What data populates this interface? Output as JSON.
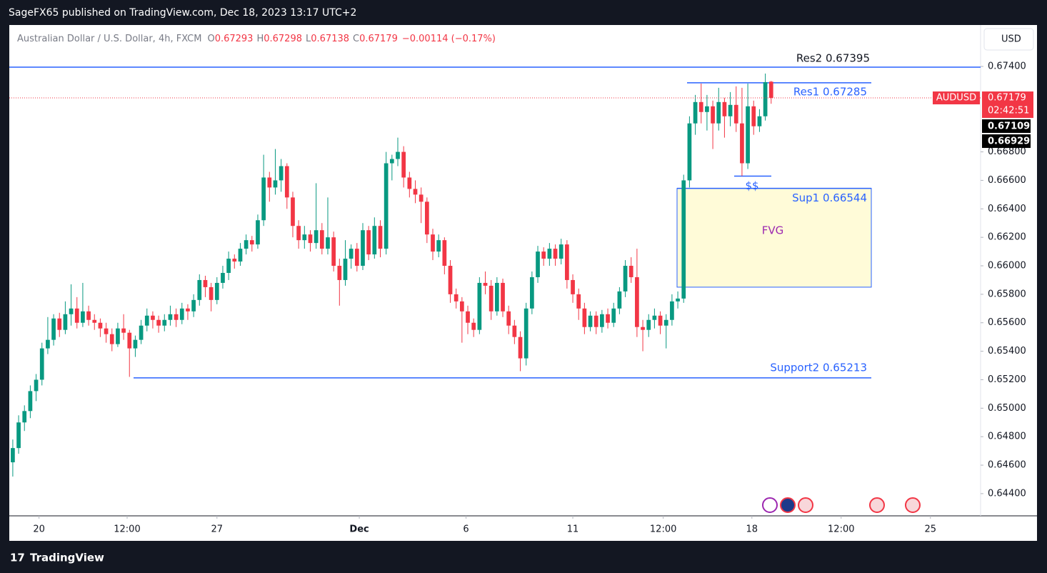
{
  "header": {
    "published": "SageFX65 published on TradingView.com, Dec 18, 2023 13:17 UTC+2",
    "logo": "TradingView"
  },
  "chart_data": {
    "type": "candlestick",
    "symbol": "Australian Dollar / U.S. Dollar, 4h, FXCM",
    "legend_keys": [
      "O",
      "H",
      "L",
      "C"
    ],
    "change": "−0.00114 (−0.17%)",
    "currency": "USD",
    "ticker": "AUDUSD",
    "countdown": "02:42:51",
    "marker_labels": [
      "0.67109",
      "0.66929"
    ],
    "up_color": "#089981",
    "down_color": "#f23645",
    "candles": [
      [
        0.6462,
        0.6478,
        0.6452,
        0.6472
      ],
      [
        0.6472,
        0.6495,
        0.6468,
        0.649
      ],
      [
        0.649,
        0.6502,
        0.6484,
        0.6498
      ],
      [
        0.6498,
        0.6516,
        0.6493,
        0.6512
      ],
      [
        0.6512,
        0.6524,
        0.6505,
        0.652
      ],
      [
        0.652,
        0.6546,
        0.6516,
        0.6542
      ],
      [
        0.6542,
        0.6564,
        0.6538,
        0.6548
      ],
      [
        0.6548,
        0.6566,
        0.6544,
        0.6563
      ],
      [
        0.6563,
        0.6567,
        0.655,
        0.6555
      ],
      [
        0.6555,
        0.6575,
        0.6552,
        0.6566
      ],
      [
        0.6566,
        0.6587,
        0.6558,
        0.657
      ],
      [
        0.657,
        0.6578,
        0.6556,
        0.656
      ],
      [
        0.656,
        0.6588,
        0.6557,
        0.6568
      ],
      [
        0.6568,
        0.6572,
        0.6558,
        0.6562
      ],
      [
        0.6562,
        0.6566,
        0.6555,
        0.656
      ],
      [
        0.656,
        0.6563,
        0.655,
        0.6556
      ],
      [
        0.6556,
        0.656,
        0.6546,
        0.6552
      ],
      [
        0.6552,
        0.6556,
        0.654,
        0.6545
      ],
      [
        0.6545,
        0.656,
        0.6543,
        0.6556
      ],
      [
        0.6556,
        0.6566,
        0.6548,
        0.6553
      ],
      [
        0.6553,
        0.6555,
        0.6522,
        0.6542
      ],
      [
        0.6542,
        0.6551,
        0.6536,
        0.6548
      ],
      [
        0.6548,
        0.6562,
        0.6545,
        0.6558
      ],
      [
        0.6558,
        0.657,
        0.6554,
        0.6565
      ],
      [
        0.6565,
        0.6568,
        0.6556,
        0.6562
      ],
      [
        0.6562,
        0.6565,
        0.6553,
        0.6558
      ],
      [
        0.6558,
        0.6566,
        0.6554,
        0.6562
      ],
      [
        0.6562,
        0.6572,
        0.6558,
        0.6566
      ],
      [
        0.6566,
        0.657,
        0.6557,
        0.6562
      ],
      [
        0.6562,
        0.6574,
        0.6559,
        0.657
      ],
      [
        0.657,
        0.6573,
        0.6562,
        0.6568
      ],
      [
        0.6568,
        0.658,
        0.6564,
        0.6576
      ],
      [
        0.6576,
        0.6594,
        0.6572,
        0.659
      ],
      [
        0.659,
        0.6593,
        0.6578,
        0.6585
      ],
      [
        0.6585,
        0.6588,
        0.6568,
        0.6576
      ],
      [
        0.6576,
        0.6592,
        0.6573,
        0.6588
      ],
      [
        0.6588,
        0.66,
        0.6584,
        0.6595
      ],
      [
        0.6595,
        0.661,
        0.659,
        0.6605
      ],
      [
        0.6605,
        0.6608,
        0.6598,
        0.6603
      ],
      [
        0.6603,
        0.6616,
        0.66,
        0.6612
      ],
      [
        0.6612,
        0.6622,
        0.6608,
        0.6618
      ],
      [
        0.6618,
        0.6621,
        0.661,
        0.6615
      ],
      [
        0.6615,
        0.6636,
        0.6612,
        0.6632
      ],
      [
        0.6632,
        0.6678,
        0.6628,
        0.6662
      ],
      [
        0.6662,
        0.6666,
        0.6645,
        0.6655
      ],
      [
        0.6655,
        0.6682,
        0.665,
        0.666
      ],
      [
        0.666,
        0.6675,
        0.6652,
        0.667
      ],
      [
        0.667,
        0.6672,
        0.664,
        0.6648
      ],
      [
        0.6648,
        0.6652,
        0.662,
        0.6628
      ],
      [
        0.6628,
        0.6632,
        0.6612,
        0.6618
      ],
      [
        0.6618,
        0.6628,
        0.6612,
        0.6622
      ],
      [
        0.6622,
        0.6625,
        0.661,
        0.6616
      ],
      [
        0.6616,
        0.6658,
        0.6612,
        0.6625
      ],
      [
        0.6625,
        0.663,
        0.6608,
        0.6612
      ],
      [
        0.6612,
        0.6648,
        0.6608,
        0.662
      ],
      [
        0.662,
        0.6624,
        0.6596,
        0.66
      ],
      [
        0.66,
        0.6605,
        0.6572,
        0.659
      ],
      [
        0.659,
        0.6618,
        0.6586,
        0.6605
      ],
      [
        0.6605,
        0.6615,
        0.6598,
        0.6612
      ],
      [
        0.6612,
        0.6616,
        0.6596,
        0.66
      ],
      [
        0.66,
        0.663,
        0.6597,
        0.6625
      ],
      [
        0.6625,
        0.6628,
        0.6604,
        0.6608
      ],
      [
        0.6608,
        0.6634,
        0.6605,
        0.6628
      ],
      [
        0.6628,
        0.6632,
        0.6606,
        0.6612
      ],
      [
        0.6612,
        0.668,
        0.6608,
        0.6672
      ],
      [
        0.6672,
        0.6678,
        0.666,
        0.6675
      ],
      [
        0.6675,
        0.669,
        0.667,
        0.668
      ],
      [
        0.668,
        0.6684,
        0.6655,
        0.6662
      ],
      [
        0.6662,
        0.6666,
        0.6648,
        0.6654
      ],
      [
        0.6654,
        0.666,
        0.6644,
        0.665
      ],
      [
        0.665,
        0.6655,
        0.663,
        0.6645
      ],
      [
        0.6645,
        0.6648,
        0.6616,
        0.6622
      ],
      [
        0.6622,
        0.6626,
        0.6604,
        0.661
      ],
      [
        0.661,
        0.6622,
        0.6606,
        0.6618
      ],
      [
        0.6618,
        0.662,
        0.6594,
        0.66
      ],
      [
        0.66,
        0.6604,
        0.6574,
        0.658
      ],
      [
        0.658,
        0.6584,
        0.657,
        0.6575
      ],
      [
        0.6575,
        0.6578,
        0.6546,
        0.6568
      ],
      [
        0.6568,
        0.6572,
        0.6552,
        0.656
      ],
      [
        0.656,
        0.6563,
        0.655,
        0.6555
      ],
      [
        0.6555,
        0.6592,
        0.6552,
        0.6588
      ],
      [
        0.6588,
        0.6596,
        0.658,
        0.6586
      ],
      [
        0.6586,
        0.659,
        0.6562,
        0.6568
      ],
      [
        0.6568,
        0.6592,
        0.6565,
        0.6588
      ],
      [
        0.6588,
        0.6591,
        0.6564,
        0.6568
      ],
      [
        0.6568,
        0.6572,
        0.6552,
        0.6558
      ],
      [
        0.6558,
        0.6562,
        0.6545,
        0.655
      ],
      [
        0.655,
        0.6554,
        0.6526,
        0.6535
      ],
      [
        0.6535,
        0.6574,
        0.653,
        0.657
      ],
      [
        0.657,
        0.6596,
        0.6566,
        0.6592
      ],
      [
        0.6592,
        0.6614,
        0.6588,
        0.661
      ],
      [
        0.661,
        0.6613,
        0.66,
        0.6605
      ],
      [
        0.6605,
        0.6616,
        0.66,
        0.6612
      ],
      [
        0.6612,
        0.6615,
        0.66,
        0.6605
      ],
      [
        0.6605,
        0.6619,
        0.6601,
        0.6615
      ],
      [
        0.6615,
        0.6618,
        0.6584,
        0.659
      ],
      [
        0.659,
        0.6594,
        0.6574,
        0.658
      ],
      [
        0.658,
        0.6584,
        0.6562,
        0.657
      ],
      [
        0.657,
        0.6574,
        0.6552,
        0.6557
      ],
      [
        0.6557,
        0.6568,
        0.6554,
        0.6565
      ],
      [
        0.6565,
        0.6568,
        0.6552,
        0.6557
      ],
      [
        0.6557,
        0.6569,
        0.6553,
        0.6566
      ],
      [
        0.6566,
        0.657,
        0.6556,
        0.656
      ],
      [
        0.656,
        0.6574,
        0.6557,
        0.657
      ],
      [
        0.657,
        0.6585,
        0.6566,
        0.6582
      ],
      [
        0.6582,
        0.6604,
        0.6578,
        0.66
      ],
      [
        0.66,
        0.6606,
        0.6588,
        0.6592
      ],
      [
        0.6592,
        0.6612,
        0.655,
        0.6557
      ],
      [
        0.6557,
        0.6562,
        0.654,
        0.6555
      ],
      [
        0.6555,
        0.6566,
        0.655,
        0.6562
      ],
      [
        0.6562,
        0.657,
        0.6556,
        0.6565
      ],
      [
        0.6565,
        0.6568,
        0.6552,
        0.6558
      ],
      [
        0.6558,
        0.6566,
        0.6542,
        0.6562
      ],
      [
        0.6562,
        0.658,
        0.6558,
        0.6575
      ],
      [
        0.6575,
        0.6582,
        0.657,
        0.6577
      ],
      [
        0.6577,
        0.6664,
        0.6574,
        0.666
      ],
      [
        0.666,
        0.6705,
        0.6655,
        0.67
      ],
      [
        0.67,
        0.672,
        0.6692,
        0.6715
      ],
      [
        0.6715,
        0.6728,
        0.67,
        0.6708
      ],
      [
        0.6708,
        0.672,
        0.6695,
        0.6712
      ],
      [
        0.6712,
        0.6716,
        0.6682,
        0.67
      ],
      [
        0.67,
        0.6725,
        0.6695,
        0.6715
      ],
      [
        0.6715,
        0.6718,
        0.669,
        0.6705
      ],
      [
        0.6705,
        0.6722,
        0.6698,
        0.6713
      ],
      [
        0.6713,
        0.6726,
        0.6694,
        0.67
      ],
      [
        0.67,
        0.6725,
        0.6663,
        0.6672
      ],
      [
        0.6672,
        0.6728,
        0.6668,
        0.6712
      ],
      [
        0.6712,
        0.6716,
        0.6692,
        0.6698
      ],
      [
        0.6698,
        0.671,
        0.6694,
        0.6705
      ],
      [
        0.6705,
        0.6735,
        0.6702,
        0.6729
      ],
      [
        0.67293,
        0.67298,
        0.67138,
        0.67179
      ]
    ],
    "xlim": [
      -0.6,
      165.9
    ],
    "xticks": [
      {
        "value": 4.5,
        "label": "20"
      },
      {
        "value": 19.6,
        "label": "12:00"
      },
      {
        "value": 35,
        "label": "27"
      },
      {
        "value": 59.4,
        "label": "Dec"
      },
      {
        "value": 77.7,
        "label": "6"
      },
      {
        "value": 96,
        "label": "11"
      },
      {
        "value": 111.5,
        "label": "12:00"
      },
      {
        "value": 126.7,
        "label": "18"
      },
      {
        "value": 142,
        "label": "12:00"
      },
      {
        "value": 157.3,
        "label": "25"
      }
    ],
    "ylim": [
      0.64244,
      0.67691
    ],
    "yticks": [
      {
        "value": 0.674,
        "label": "0.67400"
      },
      {
        "value": 0.668,
        "label": "0.66800"
      },
      {
        "value": 0.666,
        "label": "0.66600"
      },
      {
        "value": 0.664,
        "label": "0.66400"
      },
      {
        "value": 0.662,
        "label": "0.66200"
      },
      {
        "value": 0.66,
        "label": "0.66000"
      },
      {
        "value": 0.658,
        "label": "0.65800"
      },
      {
        "value": 0.656,
        "label": "0.65600"
      },
      {
        "value": 0.654,
        "label": "0.65400"
      },
      {
        "value": 0.652,
        "label": "0.65200"
      },
      {
        "value": 0.65,
        "label": "0.65000"
      },
      {
        "value": 0.648,
        "label": "0.64800"
      },
      {
        "value": 0.646,
        "label": "0.64600"
      },
      {
        "value": 0.644,
        "label": "0.64400"
      }
    ],
    "levels": [
      {
        "label": "Res2 0.67395",
        "value": 0.67395,
        "color": "#2962ff",
        "text_color": "#131722"
      },
      {
        "label": "Res1 0.67285",
        "value": 0.67285,
        "color": "#2962ff",
        "text_color": "#2962ff"
      },
      {
        "label": "Sup1 0.66544",
        "value": 0.66544,
        "color": "#2962ff",
        "text_color": "#2962ff"
      },
      {
        "label": "Support2  0.65213",
        "value": 0.65213,
        "color": "#2962ff",
        "text_color": "#2962ff"
      }
    ],
    "liquidity": {
      "label": "$$",
      "value": 0.6663
    },
    "fvg": {
      "label": "FVG",
      "top": 0.66544,
      "bottom": 0.6585,
      "fill": "#fffbd8",
      "text_color": "#9c27b0"
    }
  }
}
